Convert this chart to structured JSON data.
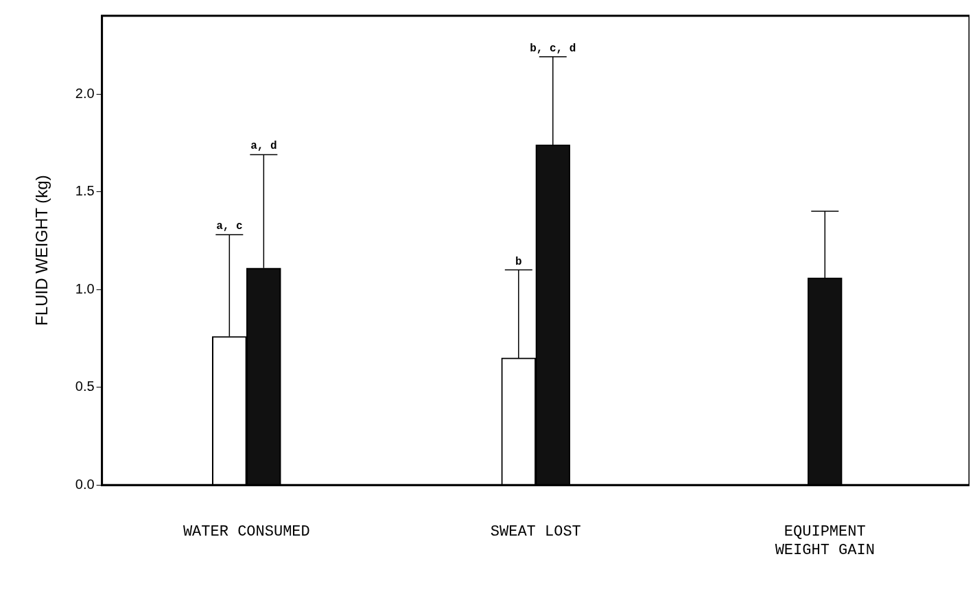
{
  "chart_data": {
    "type": "bar",
    "ylabel": "FLUID WEIGHT (kg)",
    "categories": [
      "WATER CONSUMED",
      "SWEAT LOST",
      "EQUIPMENT WEIGHT GAIN"
    ],
    "series": [
      {
        "color": "#ffffff",
        "values": [
          0.76,
          0.65,
          null
        ],
        "errors": [
          [
            0.76,
            1.28
          ],
          [
            0.65,
            1.1
          ],
          null
        ]
      },
      {
        "color": "#111111",
        "values": [
          1.11,
          1.74,
          1.06
        ],
        "errors": [
          [
            1.11,
            1.69
          ],
          [
            1.74,
            2.19
          ],
          [
            1.06,
            1.4
          ]
        ]
      }
    ],
    "annotations": [
      "a, c",
      "a, d",
      "b",
      "b, c, d"
    ],
    "ylim": [
      0,
      2.4
    ],
    "yticks": [
      {
        "value": 0,
        "label": "0.0"
      },
      {
        "value": 0.5,
        "label": "0.5"
      },
      {
        "value": 1,
        "label": "1.0"
      },
      {
        "value": 1.5,
        "label": "1.5"
      },
      {
        "value": 2,
        "label": "2.0"
      }
    ],
    "grid": false,
    "legend": false
  }
}
